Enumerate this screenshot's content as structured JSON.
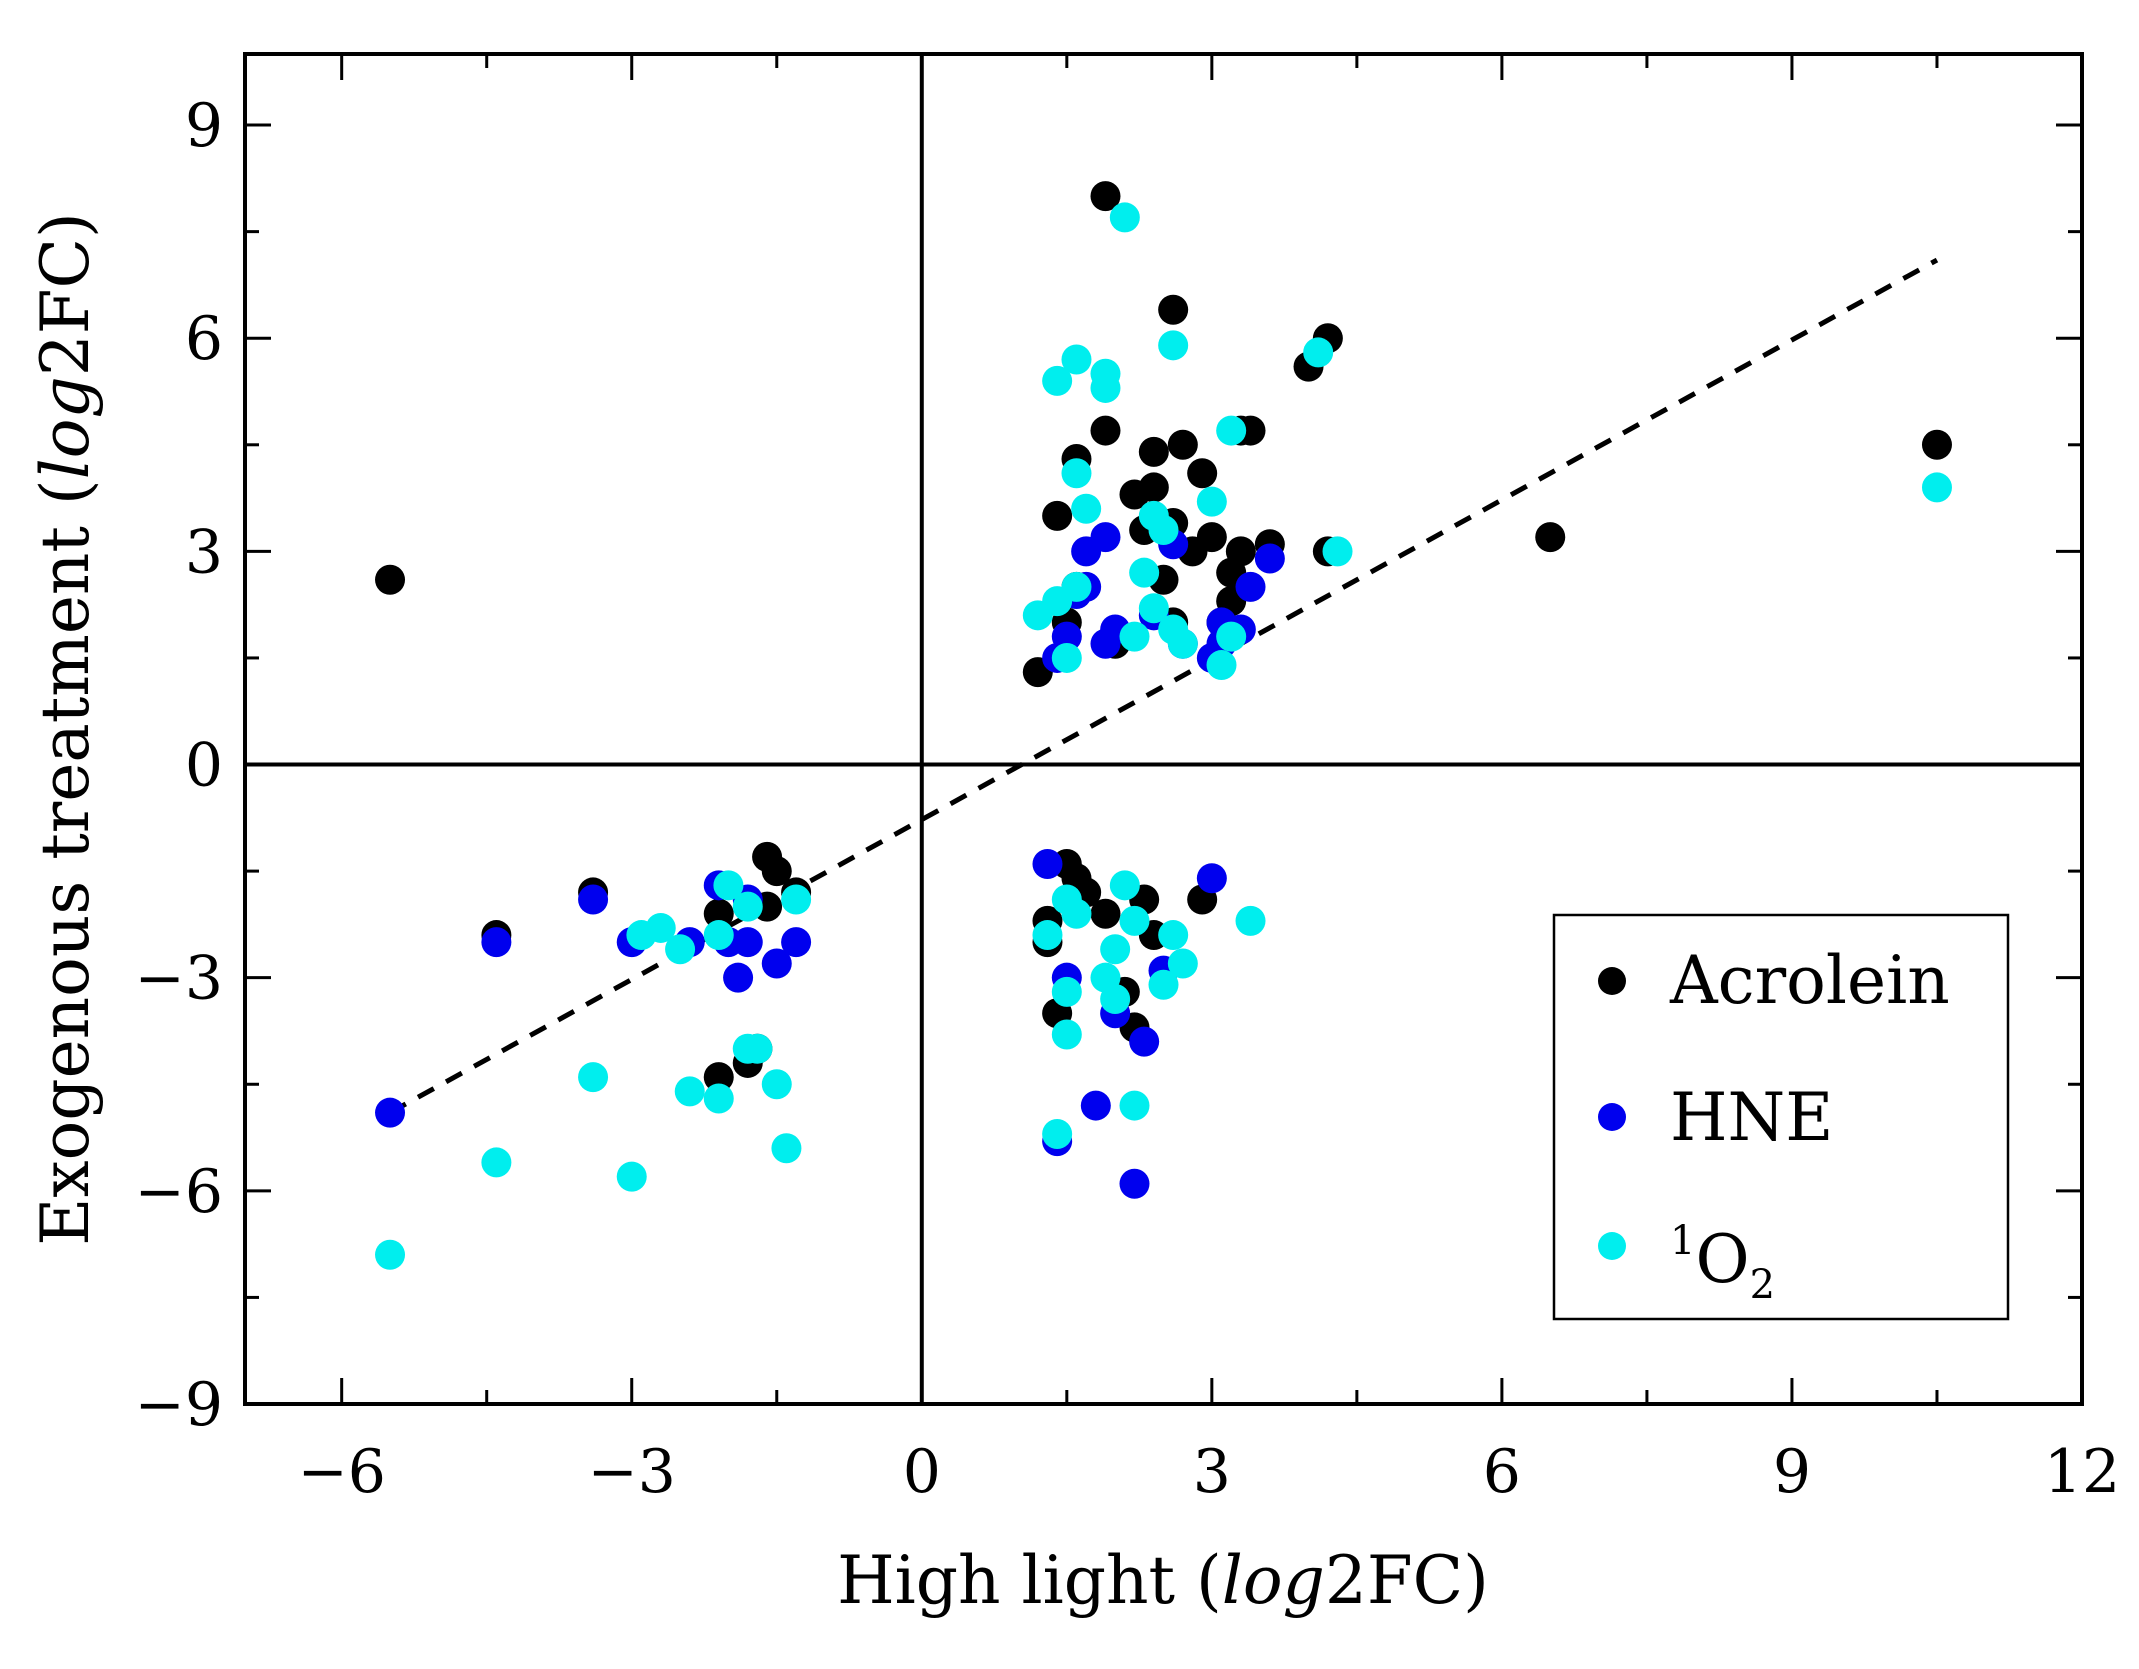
{
  "chart_data": {
    "type": "scatter",
    "xlabel": {
      "prefix": "High light (",
      "italic": "log",
      "suffix": "2FC)"
    },
    "ylabel": {
      "prefix": "Exogenous treatment (",
      "italic": "log",
      "suffix": "2FC)"
    },
    "xlim": [
      -7,
      12
    ],
    "ylim": [
      -9,
      10
    ],
    "xticks": [
      -6,
      -3,
      0,
      3,
      6,
      9,
      12
    ],
    "yticks": [
      -9,
      -6,
      -3,
      0,
      3,
      6,
      9
    ],
    "xtick_labels": [
      "−6",
      "−3",
      "0",
      "3",
      "6",
      "9",
      "12"
    ],
    "ytick_labels": [
      "−9",
      "−6",
      "−3",
      "0",
      "3",
      "6",
      "9"
    ],
    "zero_lines": true,
    "fit_line": {
      "style": "dashed",
      "x": [
        -5.5,
        10.5
      ],
      "y": [
        -4.9,
        7.1
      ]
    },
    "legend": {
      "position": "bottom-right",
      "entries": [
        {
          "label": "Acrolein"
        },
        {
          "label": "HNE"
        },
        {
          "label_base": "O",
          "label_sup": "1",
          "label_sub": "2"
        }
      ]
    },
    "series": [
      {
        "name": "Acrolein",
        "color": "#000000",
        "points": [
          [
            -5.5,
            2.6
          ],
          [
            -4.4,
            -2.4
          ],
          [
            -3.4,
            -1.8
          ],
          [
            -2.1,
            -2.1
          ],
          [
            -2.1,
            -4.4
          ],
          [
            -1.8,
            -4.2
          ],
          [
            -1.7,
            -4.0
          ],
          [
            -1.6,
            -2.0
          ],
          [
            -1.6,
            -1.3
          ],
          [
            -1.5,
            -1.5
          ],
          [
            -1.3,
            -1.8
          ],
          [
            1.2,
            1.3
          ],
          [
            1.3,
            -2.2
          ],
          [
            1.3,
            -2.5
          ],
          [
            1.4,
            -3.5
          ],
          [
            1.4,
            3.5
          ],
          [
            1.5,
            2.0
          ],
          [
            1.5,
            -1.4
          ],
          [
            1.6,
            4.3
          ],
          [
            1.6,
            2.5
          ],
          [
            1.6,
            -1.6
          ],
          [
            1.7,
            -1.8
          ],
          [
            1.9,
            8.0
          ],
          [
            1.9,
            4.7
          ],
          [
            1.9,
            -2.1
          ],
          [
            2.0,
            1.7
          ],
          [
            2.1,
            -3.2
          ],
          [
            2.2,
            3.8
          ],
          [
            2.2,
            -3.7
          ],
          [
            2.3,
            3.3
          ],
          [
            2.3,
            -1.9
          ],
          [
            2.4,
            4.4
          ],
          [
            2.4,
            3.9
          ],
          [
            2.4,
            -2.4
          ],
          [
            2.5,
            2.6
          ],
          [
            2.6,
            6.4
          ],
          [
            2.6,
            2.0
          ],
          [
            2.6,
            3.4
          ],
          [
            2.7,
            4.5
          ],
          [
            2.8,
            3.0
          ],
          [
            2.9,
            4.1
          ],
          [
            2.9,
            -1.9
          ],
          [
            3.0,
            3.2
          ],
          [
            3.1,
            2.0
          ],
          [
            3.2,
            2.3
          ],
          [
            3.2,
            2.7
          ],
          [
            3.3,
            3.0
          ],
          [
            3.3,
            4.7
          ],
          [
            3.4,
            4.7
          ],
          [
            3.6,
            3.1
          ],
          [
            4.0,
            5.6
          ],
          [
            4.2,
            6.0
          ],
          [
            4.2,
            3.0
          ],
          [
            6.5,
            3.2
          ],
          [
            10.5,
            4.5
          ]
        ]
      },
      {
        "name": "HNE",
        "color": "#0000ee",
        "points": [
          [
            -5.5,
            -4.9
          ],
          [
            -4.4,
            -2.5
          ],
          [
            -3.4,
            -1.9
          ],
          [
            -3.0,
            -2.5
          ],
          [
            -2.4,
            -2.5
          ],
          [
            -2.1,
            -1.7
          ],
          [
            -2.0,
            -2.5
          ],
          [
            -1.9,
            -3.0
          ],
          [
            -1.8,
            -1.9
          ],
          [
            -1.8,
            -2.5
          ],
          [
            -1.5,
            -2.8
          ],
          [
            -1.3,
            -2.5
          ],
          [
            1.3,
            -1.4
          ],
          [
            1.4,
            -5.3
          ],
          [
            1.4,
            1.5
          ],
          [
            1.5,
            1.8
          ],
          [
            1.5,
            -3.0
          ],
          [
            1.6,
            2.4
          ],
          [
            1.7,
            3.0
          ],
          [
            1.7,
            2.5
          ],
          [
            1.8,
            -4.8
          ],
          [
            1.9,
            3.2
          ],
          [
            1.9,
            1.7
          ],
          [
            2.0,
            1.9
          ],
          [
            2.0,
            -3.5
          ],
          [
            2.2,
            -5.9
          ],
          [
            2.3,
            -3.9
          ],
          [
            2.4,
            2.1
          ],
          [
            2.5,
            -2.9
          ],
          [
            2.6,
            3.1
          ],
          [
            2.7,
            1.7
          ],
          [
            3.0,
            1.5
          ],
          [
            3.0,
            -1.6
          ],
          [
            3.1,
            2.0
          ],
          [
            3.1,
            1.7
          ],
          [
            3.3,
            1.9
          ],
          [
            3.4,
            2.5
          ],
          [
            3.6,
            2.9
          ]
        ]
      },
      {
        "name": "1O2",
        "color": "#00eeee",
        "points": [
          [
            -5.5,
            -6.9
          ],
          [
            -4.4,
            -5.6
          ],
          [
            -3.4,
            -4.4
          ],
          [
            -3.0,
            -5.8
          ],
          [
            -2.9,
            -2.4
          ],
          [
            -2.7,
            -2.3
          ],
          [
            -2.5,
            -2.6
          ],
          [
            -2.4,
            -4.6
          ],
          [
            -2.1,
            -4.7
          ],
          [
            -2.1,
            -2.4
          ],
          [
            -2.0,
            -1.7
          ],
          [
            -1.8,
            -2.0
          ],
          [
            -1.8,
            -4.0
          ],
          [
            -1.7,
            -4.0
          ],
          [
            -1.5,
            -4.5
          ],
          [
            -1.4,
            -5.4
          ],
          [
            -1.3,
            -1.9
          ],
          [
            1.2,
            2.1
          ],
          [
            1.3,
            -2.4
          ],
          [
            1.4,
            2.3
          ],
          [
            1.4,
            -5.2
          ],
          [
            1.4,
            5.4
          ],
          [
            1.5,
            1.5
          ],
          [
            1.5,
            -1.9
          ],
          [
            1.5,
            -3.2
          ],
          [
            1.5,
            -3.8
          ],
          [
            1.6,
            5.7
          ],
          [
            1.6,
            4.1
          ],
          [
            1.6,
            2.5
          ],
          [
            1.6,
            -2.1
          ],
          [
            1.7,
            3.6
          ],
          [
            1.9,
            5.5
          ],
          [
            1.9,
            5.3
          ],
          [
            1.9,
            -3.0
          ],
          [
            2.0,
            -2.6
          ],
          [
            2.0,
            -3.3
          ],
          [
            2.1,
            7.7
          ],
          [
            2.1,
            -1.7
          ],
          [
            2.2,
            1.8
          ],
          [
            2.2,
            -2.2
          ],
          [
            2.2,
            -4.8
          ],
          [
            2.3,
            2.7
          ],
          [
            2.4,
            3.5
          ],
          [
            2.4,
            2.2
          ],
          [
            2.5,
            3.3
          ],
          [
            2.5,
            -3.1
          ],
          [
            2.6,
            5.9
          ],
          [
            2.6,
            1.9
          ],
          [
            2.6,
            -2.4
          ],
          [
            2.7,
            1.7
          ],
          [
            2.7,
            -2.8
          ],
          [
            3.0,
            3.7
          ],
          [
            3.1,
            1.4
          ],
          [
            3.2,
            4.7
          ],
          [
            3.2,
            1.8
          ],
          [
            3.4,
            -2.2
          ],
          [
            4.1,
            5.8
          ],
          [
            4.3,
            3.0
          ],
          [
            10.5,
            3.9
          ]
        ]
      }
    ]
  }
}
